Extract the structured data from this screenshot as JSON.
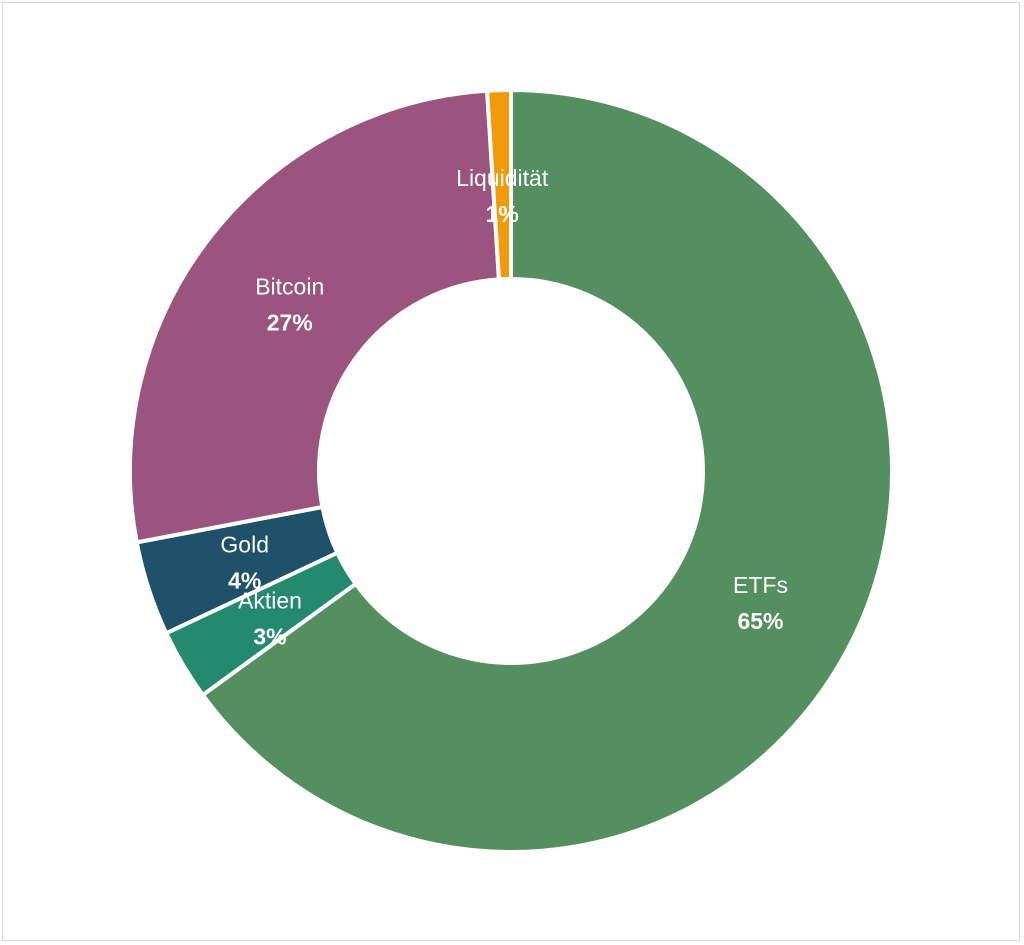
{
  "chart_data": {
    "type": "pie",
    "variant": "donut",
    "title": "",
    "legend": "none",
    "slices": [
      {
        "name": "ETFs",
        "value": 65,
        "label": "65%",
        "color": "#548F5F"
      },
      {
        "name": "Aktien",
        "value": 3,
        "label": "3%",
        "color": "#248A6E"
      },
      {
        "name": "Gold",
        "value": 4,
        "label": "4%",
        "color": "#1F516A"
      },
      {
        "name": "Bitcoin",
        "value": 27,
        "label": "27%",
        "color": "#9B537F"
      },
      {
        "name": "Liquidität",
        "value": 1,
        "label": "1%",
        "color": "#F39A0A"
      }
    ]
  }
}
